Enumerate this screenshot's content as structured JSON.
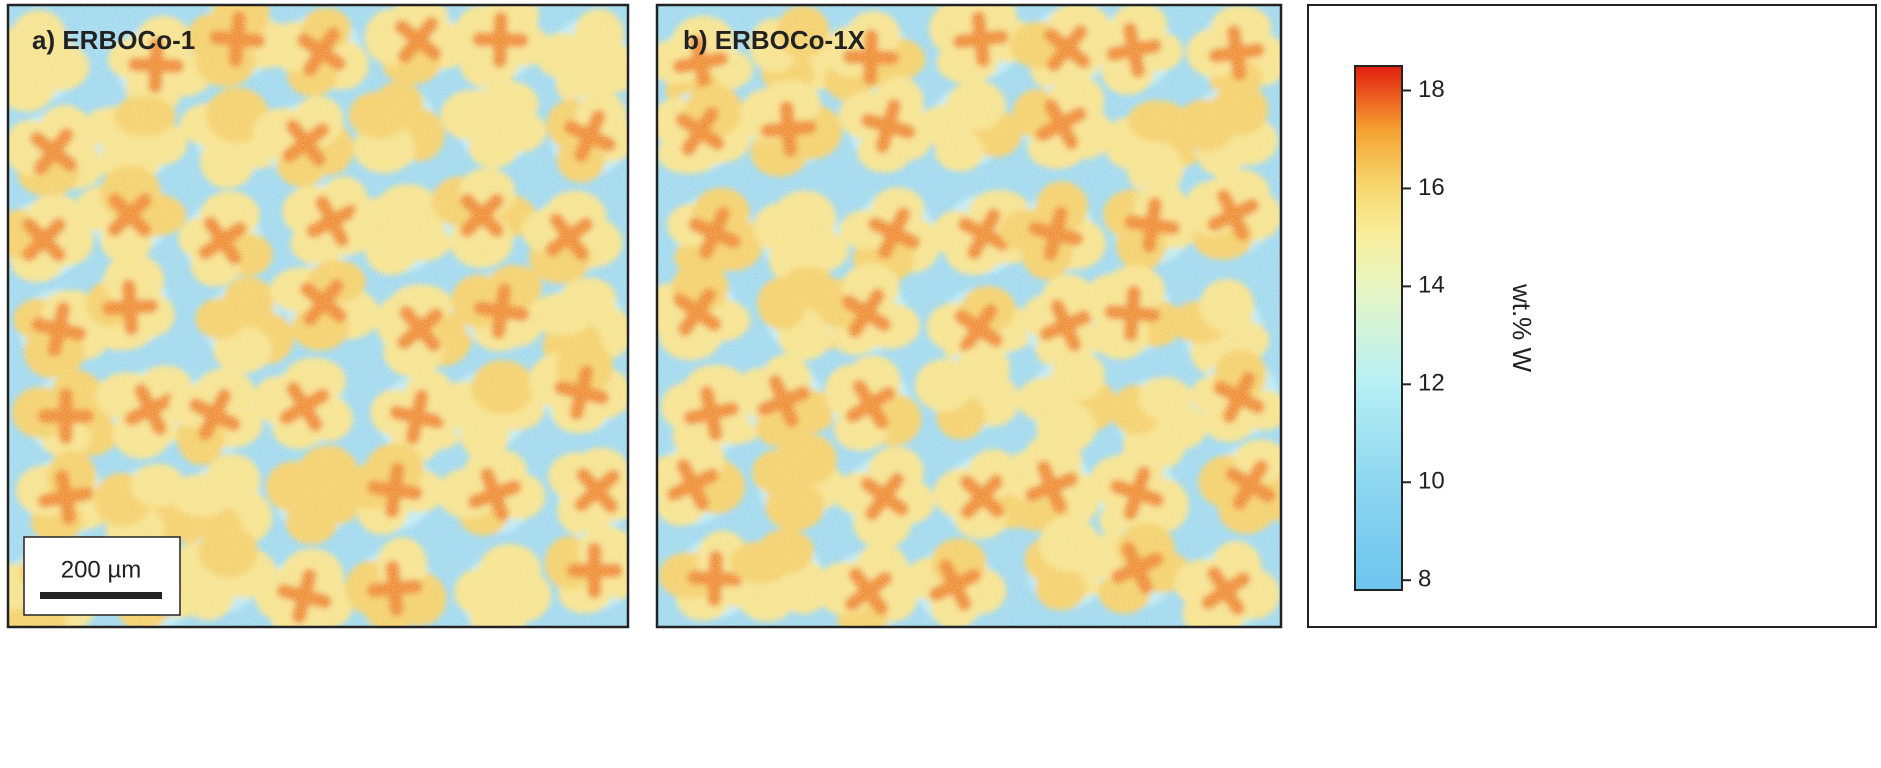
{
  "panels": [
    {
      "label": "a) ERBOCo-1"
    },
    {
      "label": "b) ERBOCo-1X"
    }
  ],
  "scale_bar": "200 µm",
  "colorbar": {
    "label": "wt.% W",
    "lim": [
      7.8,
      18.5
    ],
    "ticks": [
      8,
      10,
      12,
      14,
      16,
      18
    ]
  }
}
